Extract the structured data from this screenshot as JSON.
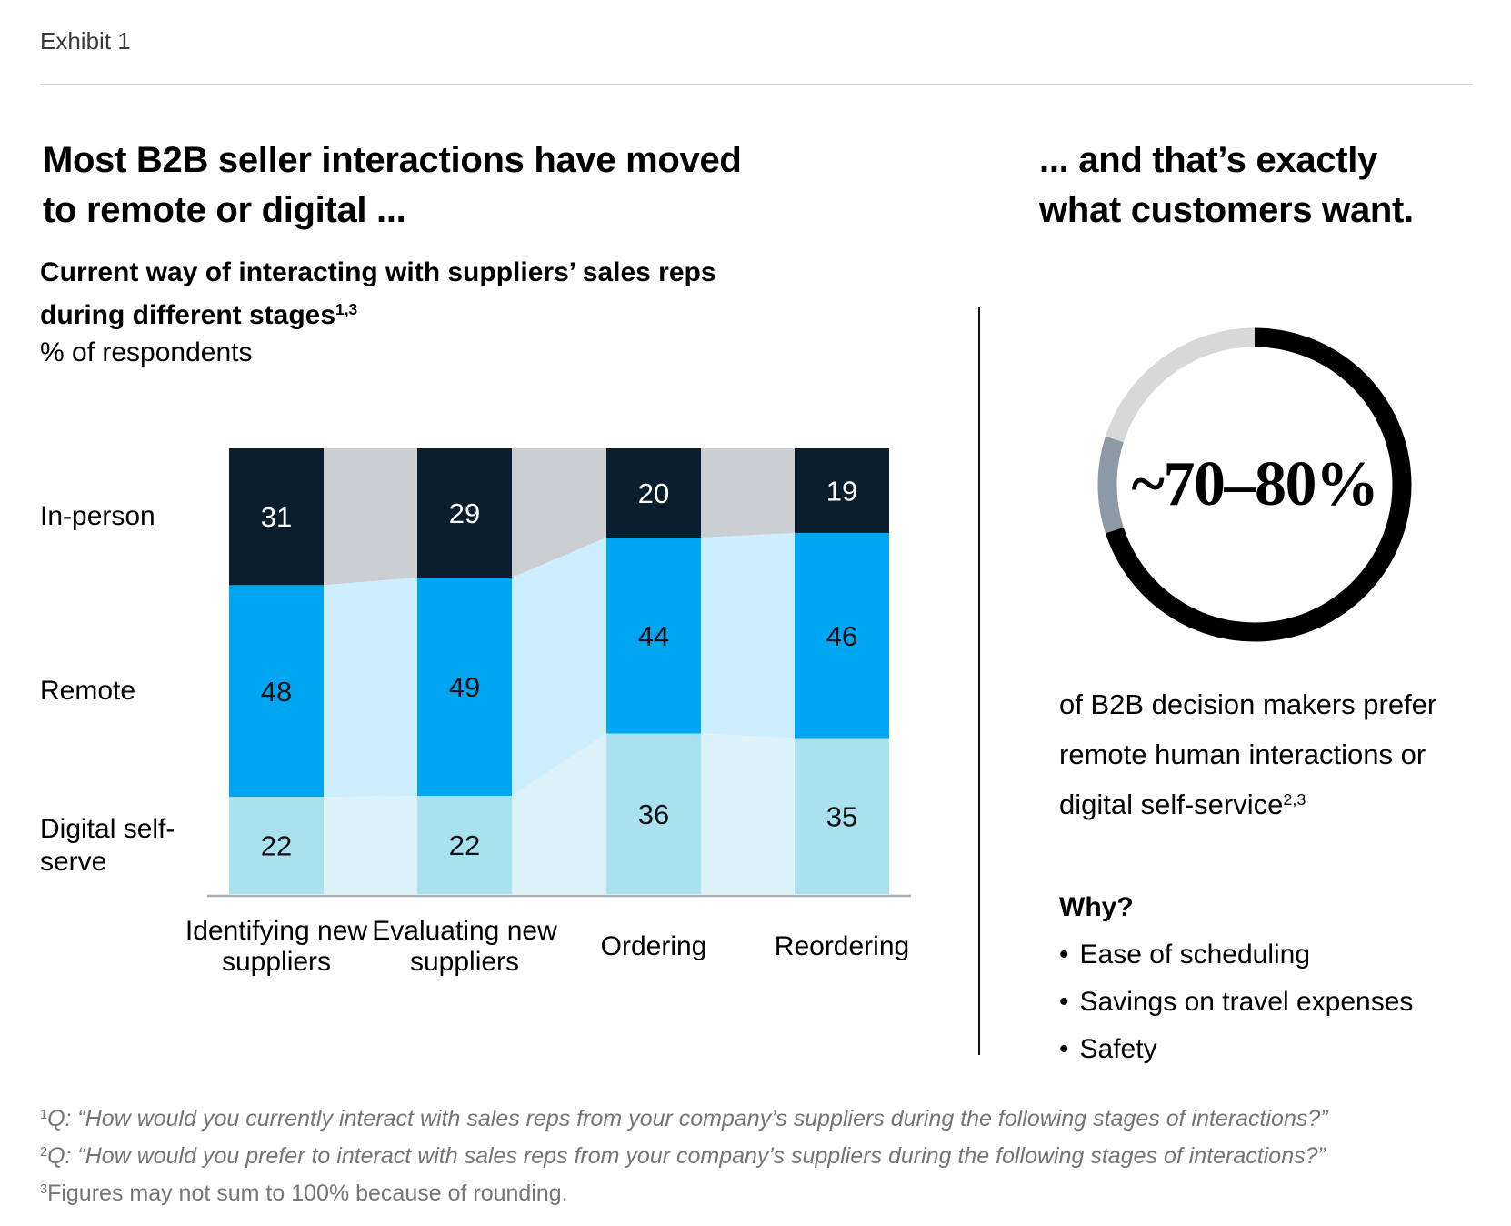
{
  "exhibit_label": "Exhibit 1",
  "left": {
    "title_line1": "Most B2B seller interactions have moved",
    "title_line2": "to remote or digital ...",
    "subtitle_line1": "Current way of interacting with suppliers’ sales reps",
    "subtitle_line2": "during different stages",
    "subtitle_sup": "1,3",
    "unit_label": "% of respondents"
  },
  "right": {
    "title_line1": "... and that’s exactly",
    "title_line2": "what customers want.",
    "donut_center_label": "~70–80%",
    "body_line1": "of B2B decision makers prefer",
    "body_line2": "remote human interactions or",
    "body_line3": "digital self-service",
    "body_sup": "2,3",
    "why_label": "Why?",
    "bullet_char": "•",
    "bullets": [
      "Ease of scheduling",
      "Savings on travel expenses",
      "Safety"
    ]
  },
  "footnotes": [
    {
      "sup": "1",
      "text": "Q: “How would you currently interact with sales reps from your company’s suppliers during the following stages of interactions?”"
    },
    {
      "sup": "2",
      "text": "Q: “How would you prefer to interact with sales reps from your company’s suppliers during the following stages of interactions?”"
    },
    {
      "sup": "3",
      "text": "Figures may not sum to 100% because of rounding."
    }
  ],
  "colors": {
    "in_person": "#0a1e2e",
    "remote": "#00a6f2",
    "digital_self_serve": "#a9e2ee",
    "flow_in_person": "#cbcfd2",
    "flow_remote": "#cdeefe",
    "flow_digital": "#ddf2f8",
    "axis_line": "#a9aeb3",
    "donut_black": "#000000",
    "donut_slate": "#8d9aa6",
    "donut_light_gray": "#d8d8d8"
  },
  "chart_data": [
    {
      "type": "bar",
      "variant": "stacked-flow-100pct",
      "title": "Current way of interacting with suppliers’ sales reps during different stages",
      "title_footnote_refs": "1,3",
      "unit": "% of respondents",
      "categories": [
        "Identifying new suppliers",
        "Evaluating new suppliers",
        "Ordering",
        "Reordering"
      ],
      "series": [
        {
          "name": "In-person",
          "values": [
            31,
            29,
            20,
            19
          ],
          "color": "#0a1e2e",
          "flow_color": "#cbcfd2",
          "label_color": "#ffffff"
        },
        {
          "name": "Remote",
          "values": [
            48,
            49,
            44,
            46
          ],
          "color": "#00a6f2",
          "flow_color": "#cdeefe",
          "label_color": "#111111"
        },
        {
          "name": "Digital self-serve",
          "values": [
            22,
            22,
            36,
            35
          ],
          "color": "#a9e2ee",
          "flow_color": "#ddf2f8",
          "label_color": "#111111"
        }
      ],
      "ylim": [
        0,
        100
      ],
      "legend_position": "left-row-labels",
      "grid": false
    },
    {
      "type": "pie",
      "variant": "donut",
      "center_label": "~70–80%",
      "segments": [
        {
          "name": "Prefer remote human interactions or digital self-service",
          "value": 70,
          "color": "#000000"
        },
        {
          "name": "70–80% range band",
          "value": 10,
          "color": "#8d9aa6"
        },
        {
          "name": "Remainder",
          "value": 20,
          "color": "#d8d8d8"
        }
      ]
    }
  ]
}
